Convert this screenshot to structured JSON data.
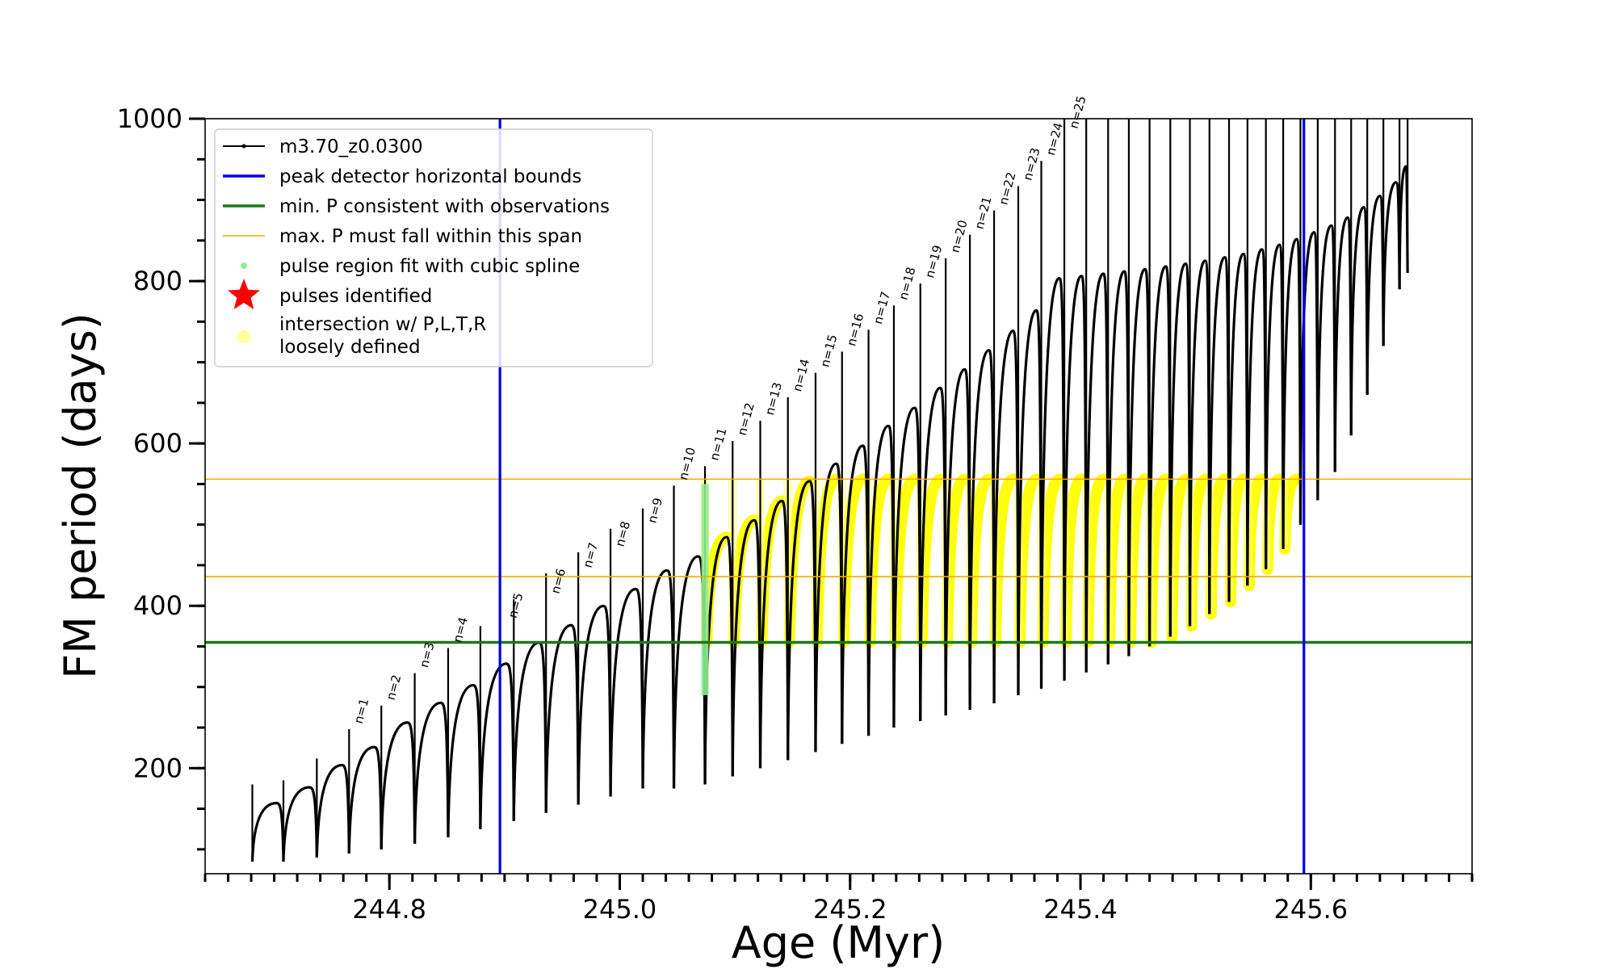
{
  "chart_data": {
    "type": "line",
    "title": "",
    "xlabel": "Age (Myr)",
    "ylabel": "FM period (days)",
    "xlim": [
      244.64,
      245.74
    ],
    "ylim": [
      70,
      1000
    ],
    "x_ticks": [
      244.8,
      245.0,
      245.2,
      245.4,
      245.6
    ],
    "x_tick_labels": [
      "244.8",
      "245.0",
      "245.2",
      "245.4",
      "245.6"
    ],
    "y_ticks": [
      200,
      400,
      600,
      800,
      1000
    ],
    "y_tick_labels": [
      "200",
      "400",
      "600",
      "800",
      "1000"
    ],
    "x_minor_step": 0.02,
    "y_minor_step": 50,
    "grid": false,
    "legend_position": "top-left",
    "legend": [
      {
        "label": "m3.70_z0.0300",
        "kind": "line-marker",
        "color": "#000000"
      },
      {
        "label": "peak detector horizontal bounds",
        "kind": "line",
        "color": "#0000ee"
      },
      {
        "label": "min. P consistent with observations",
        "kind": "line",
        "color": "#1a7a1a"
      },
      {
        "label": "max. P must fall within this span",
        "kind": "line",
        "color": "#ffa500"
      },
      {
        "label": "pulse region fit with cubic spline",
        "kind": "dot",
        "color": "#90ee90"
      },
      {
        "label": "pulses identified",
        "kind": "star",
        "color": "#ff0000"
      },
      {
        "label": "intersection w/ P,L,T,R",
        "label2": "loosely defined",
        "kind": "dot",
        "color": "#ffff99"
      }
    ],
    "vertical_lines": [
      {
        "x": 244.896,
        "color": "#0000ee"
      },
      {
        "x": 245.594,
        "color": "#0000ee"
      }
    ],
    "horizontal_lines": [
      {
        "y": 355,
        "color": "#1a7a1a",
        "width": 3.5
      },
      {
        "y": 556,
        "color": "#ffa500",
        "width": 1.6
      },
      {
        "y": 436,
        "color": "#ffa500",
        "width": 1.6
      }
    ],
    "series": [
      {
        "kind": "pulses",
        "color": "#000000",
        "pulses": [
          {
            "x": 244.681,
            "min": 85,
            "max": 180
          },
          {
            "x": 244.708,
            "min": 85,
            "max": 185
          },
          {
            "x": 244.737,
            "min": 90,
            "max": 212
          },
          {
            "x": 244.765,
            "min": 95,
            "max": 248
          },
          {
            "x": 244.793,
            "min": 100,
            "max": 277
          },
          {
            "x": 244.822,
            "min": 107,
            "max": 317
          },
          {
            "x": 244.851,
            "min": 115,
            "max": 348
          },
          {
            "x": 244.879,
            "min": 125,
            "max": 375
          },
          {
            "x": 244.908,
            "min": 135,
            "max": 408
          },
          {
            "x": 244.936,
            "min": 145,
            "max": 440
          },
          {
            "x": 244.964,
            "min": 155,
            "max": 466
          },
          {
            "x": 244.992,
            "min": 165,
            "max": 495
          },
          {
            "x": 245.02,
            "min": 175,
            "max": 520
          },
          {
            "x": 245.047,
            "min": 175,
            "max": 548
          },
          {
            "x": 245.074,
            "min": 180,
            "max": 572
          },
          {
            "x": 245.098,
            "min": 190,
            "max": 603
          },
          {
            "x": 245.122,
            "min": 200,
            "max": 628
          },
          {
            "x": 245.146,
            "min": 210,
            "max": 657
          },
          {
            "x": 245.17,
            "min": 220,
            "max": 687
          },
          {
            "x": 245.193,
            "min": 230,
            "max": 713
          },
          {
            "x": 245.216,
            "min": 240,
            "max": 740
          },
          {
            "x": 245.238,
            "min": 250,
            "max": 770
          },
          {
            "x": 245.261,
            "min": 258,
            "max": 797
          },
          {
            "x": 245.283,
            "min": 265,
            "max": 828
          },
          {
            "x": 245.304,
            "min": 272,
            "max": 857
          },
          {
            "x": 245.325,
            "min": 280,
            "max": 887
          },
          {
            "x": 245.346,
            "min": 290,
            "max": 917
          },
          {
            "x": 245.366,
            "min": 298,
            "max": 948
          },
          {
            "x": 245.386,
            "min": 308,
            "max": 1000
          },
          {
            "x": 245.405,
            "min": 318,
            "max": 1000
          },
          {
            "x": 245.424,
            "min": 328,
            "max": 1000
          },
          {
            "x": 245.442,
            "min": 338,
            "max": 1000
          },
          {
            "x": 245.46,
            "min": 350,
            "max": 1000
          },
          {
            "x": 245.478,
            "min": 362,
            "max": 1000
          },
          {
            "x": 245.495,
            "min": 375,
            "max": 1000
          },
          {
            "x": 245.512,
            "min": 390,
            "max": 1000
          },
          {
            "x": 245.529,
            "min": 405,
            "max": 1000
          },
          {
            "x": 245.545,
            "min": 425,
            "max": 1000
          },
          {
            "x": 245.561,
            "min": 445,
            "max": 1000
          },
          {
            "x": 245.576,
            "min": 470,
            "max": 1000
          },
          {
            "x": 245.591,
            "min": 500,
            "max": 1000
          },
          {
            "x": 245.606,
            "min": 530,
            "max": 1000
          },
          {
            "x": 245.621,
            "min": 565,
            "max": 1000
          },
          {
            "x": 245.635,
            "min": 610,
            "max": 1000
          },
          {
            "x": 245.649,
            "min": 660,
            "max": 1000
          },
          {
            "x": 245.663,
            "min": 720,
            "max": 1000
          },
          {
            "x": 245.677,
            "min": 790,
            "max": 1000
          },
          {
            "x": 245.684,
            "min": 810,
            "max": 1000
          }
        ]
      },
      {
        "kind": "highlight-band",
        "name": "intersection w/ P,L,T,R loosely defined",
        "color": "#ffff00",
        "from_pulse": 14,
        "to_pulse": 40,
        "y_low": 355,
        "y_high": 556
      },
      {
        "kind": "spline-region",
        "name": "pulse region fit with cubic spline",
        "color": "#90ee90",
        "x": 245.074,
        "y_range": [
          290,
          550
        ]
      }
    ],
    "annotations": [
      {
        "text": "n=1",
        "x": 244.765,
        "y": 252
      },
      {
        "text": "n=2",
        "x": 244.793,
        "y": 281
      },
      {
        "text": "n=3",
        "x": 244.822,
        "y": 321
      },
      {
        "text": "n=4",
        "x": 244.851,
        "y": 352
      },
      {
        "text": "n=5",
        "x": 244.899,
        "y": 382
      },
      {
        "text": "n=6",
        "x": 244.936,
        "y": 412
      },
      {
        "text": "n=7",
        "x": 244.964,
        "y": 444
      },
      {
        "text": "n=8",
        "x": 244.992,
        "y": 470
      },
      {
        "text": "n=9",
        "x": 245.02,
        "y": 499
      },
      {
        "text": "n=10",
        "x": 245.047,
        "y": 552
      },
      {
        "text": "n=11",
        "x": 245.074,
        "y": 576
      },
      {
        "text": "n=12",
        "x": 245.098,
        "y": 607
      },
      {
        "text": "n=13",
        "x": 245.122,
        "y": 632
      },
      {
        "text": "n=14",
        "x": 245.146,
        "y": 661
      },
      {
        "text": "n=15",
        "x": 245.17,
        "y": 691
      },
      {
        "text": "n=16",
        "x": 245.193,
        "y": 717
      },
      {
        "text": "n=17",
        "x": 245.216,
        "y": 744
      },
      {
        "text": "n=18",
        "x": 245.238,
        "y": 774
      },
      {
        "text": "n=19",
        "x": 245.261,
        "y": 801
      },
      {
        "text": "n=20",
        "x": 245.283,
        "y": 832
      },
      {
        "text": "n=21",
        "x": 245.304,
        "y": 861
      },
      {
        "text": "n=22",
        "x": 245.325,
        "y": 891
      },
      {
        "text": "n=23",
        "x": 245.346,
        "y": 921
      },
      {
        "text": "n=24",
        "x": 245.366,
        "y": 952
      },
      {
        "text": "n=25",
        "x": 245.386,
        "y": 985
      }
    ]
  }
}
